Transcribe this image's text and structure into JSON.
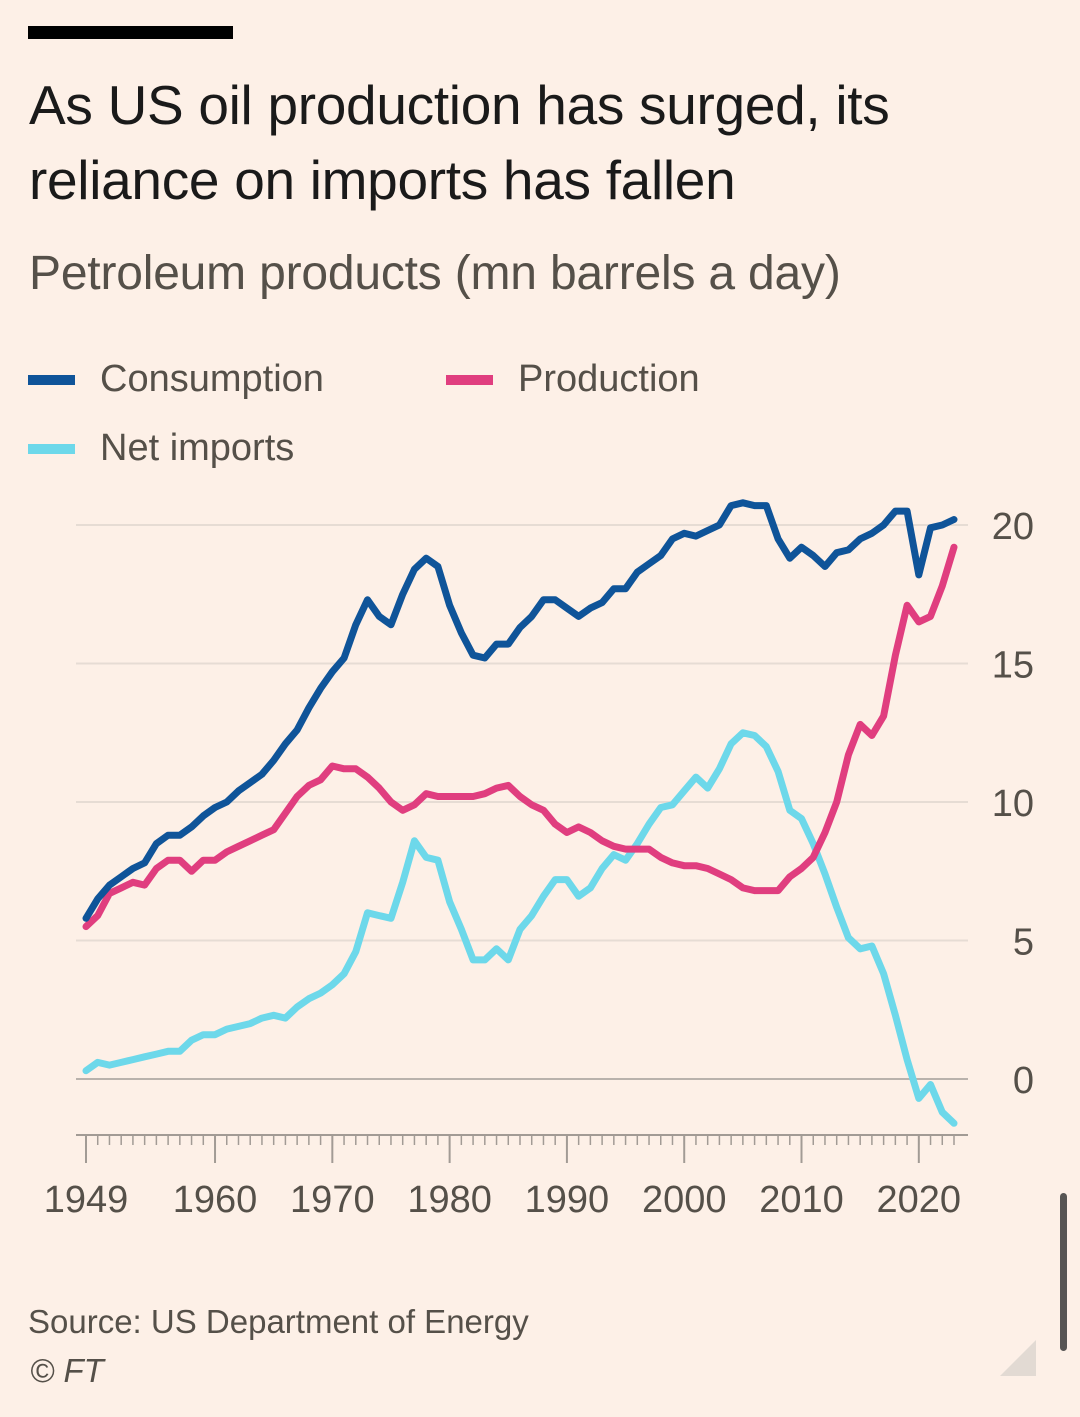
{
  "header": {
    "title": "As US oil production has surged, its reliance on imports has fallen",
    "subtitle": "Petroleum products (mn barrels a day)"
  },
  "legend": [
    {
      "label": "Consumption",
      "color": "#0f5499"
    },
    {
      "label": "Production",
      "color": "#e03e7f"
    },
    {
      "label": "Net imports",
      "color": "#6dd8ea"
    }
  ],
  "footer": {
    "source": "Source: US Department of Energy",
    "copyright": "© FT"
  },
  "chart_data": {
    "type": "line",
    "title": "As US oil production has surged, its reliance on imports has fallen",
    "ylabel": "Petroleum products (mn barrels a day)",
    "xlim": [
      1949,
      2023
    ],
    "ylim": [
      -2,
      21
    ],
    "yticks": [
      0,
      5,
      10,
      15,
      20
    ],
    "ytick_labels": [
      "0",
      "5",
      "10",
      "15",
      "20"
    ],
    "xticks": [
      1949,
      1960,
      1970,
      1980,
      1990,
      2000,
      2010,
      2020
    ],
    "xtick_labels": [
      "1949",
      "1960",
      "1970",
      "1980",
      "1990",
      "2000",
      "2010",
      "2020"
    ],
    "series": [
      {
        "name": "Consumption",
        "color": "#0f5499",
        "points": [
          [
            1949,
            5.8
          ],
          [
            1950,
            6.5
          ],
          [
            1951,
            7.0
          ],
          [
            1952,
            7.3
          ],
          [
            1953,
            7.6
          ],
          [
            1954,
            7.8
          ],
          [
            1955,
            8.5
          ],
          [
            1956,
            8.8
          ],
          [
            1957,
            8.8
          ],
          [
            1958,
            9.1
          ],
          [
            1959,
            9.5
          ],
          [
            1960,
            9.8
          ],
          [
            1961,
            10.0
          ],
          [
            1962,
            10.4
          ],
          [
            1963,
            10.7
          ],
          [
            1964,
            11.0
          ],
          [
            1965,
            11.5
          ],
          [
            1966,
            12.1
          ],
          [
            1967,
            12.6
          ],
          [
            1968,
            13.4
          ],
          [
            1969,
            14.1
          ],
          [
            1970,
            14.7
          ],
          [
            1971,
            15.2
          ],
          [
            1972,
            16.4
          ],
          [
            1973,
            17.3
          ],
          [
            1974,
            16.7
          ],
          [
            1975,
            16.4
          ],
          [
            1976,
            17.5
          ],
          [
            1977,
            18.4
          ],
          [
            1978,
            18.8
          ],
          [
            1979,
            18.5
          ],
          [
            1980,
            17.1
          ],
          [
            1981,
            16.1
          ],
          [
            1982,
            15.3
          ],
          [
            1983,
            15.2
          ],
          [
            1984,
            15.7
          ],
          [
            1985,
            15.7
          ],
          [
            1986,
            16.3
          ],
          [
            1987,
            16.7
          ],
          [
            1988,
            17.3
          ],
          [
            1989,
            17.3
          ],
          [
            1990,
            17.0
          ],
          [
            1991,
            16.7
          ],
          [
            1992,
            17.0
          ],
          [
            1993,
            17.2
          ],
          [
            1994,
            17.7
          ],
          [
            1995,
            17.7
          ],
          [
            1996,
            18.3
          ],
          [
            1997,
            18.6
          ],
          [
            1998,
            18.9
          ],
          [
            1999,
            19.5
          ],
          [
            2000,
            19.7
          ],
          [
            2001,
            19.6
          ],
          [
            2002,
            19.8
          ],
          [
            2003,
            20.0
          ],
          [
            2004,
            20.7
          ],
          [
            2005,
            20.8
          ],
          [
            2006,
            20.7
          ],
          [
            2007,
            20.7
          ],
          [
            2008,
            19.5
          ],
          [
            2009,
            18.8
          ],
          [
            2010,
            19.2
          ],
          [
            2011,
            18.9
          ],
          [
            2012,
            18.5
          ],
          [
            2013,
            19.0
          ],
          [
            2014,
            19.1
          ],
          [
            2015,
            19.5
          ],
          [
            2016,
            19.7
          ],
          [
            2017,
            20.0
          ],
          [
            2018,
            20.5
          ],
          [
            2019,
            20.5
          ],
          [
            2020,
            18.2
          ],
          [
            2021,
            19.9
          ],
          [
            2022,
            20.0
          ],
          [
            2023,
            20.2
          ]
        ]
      },
      {
        "name": "Production",
        "color": "#e03e7f",
        "points": [
          [
            1949,
            5.5
          ],
          [
            1950,
            5.9
          ],
          [
            1951,
            6.7
          ],
          [
            1952,
            6.9
          ],
          [
            1953,
            7.1
          ],
          [
            1954,
            7.0
          ],
          [
            1955,
            7.6
          ],
          [
            1956,
            7.9
          ],
          [
            1957,
            7.9
          ],
          [
            1958,
            7.5
          ],
          [
            1959,
            7.9
          ],
          [
            1960,
            7.9
          ],
          [
            1961,
            8.2
          ],
          [
            1962,
            8.4
          ],
          [
            1963,
            8.6
          ],
          [
            1964,
            8.8
          ],
          [
            1965,
            9.0
          ],
          [
            1966,
            9.6
          ],
          [
            1967,
            10.2
          ],
          [
            1968,
            10.6
          ],
          [
            1969,
            10.8
          ],
          [
            1970,
            11.3
          ],
          [
            1971,
            11.2
          ],
          [
            1972,
            11.2
          ],
          [
            1973,
            10.9
          ],
          [
            1974,
            10.5
          ],
          [
            1975,
            10.0
          ],
          [
            1976,
            9.7
          ],
          [
            1977,
            9.9
          ],
          [
            1978,
            10.3
          ],
          [
            1979,
            10.2
          ],
          [
            1980,
            10.2
          ],
          [
            1981,
            10.2
          ],
          [
            1982,
            10.2
          ],
          [
            1983,
            10.3
          ],
          [
            1984,
            10.5
          ],
          [
            1985,
            10.6
          ],
          [
            1986,
            10.2
          ],
          [
            1987,
            9.9
          ],
          [
            1988,
            9.7
          ],
          [
            1989,
            9.2
          ],
          [
            1990,
            8.9
          ],
          [
            1991,
            9.1
          ],
          [
            1992,
            8.9
          ],
          [
            1993,
            8.6
          ],
          [
            1994,
            8.4
          ],
          [
            1995,
            8.3
          ],
          [
            1996,
            8.3
          ],
          [
            1997,
            8.3
          ],
          [
            1998,
            8.0
          ],
          [
            1999,
            7.8
          ],
          [
            2000,
            7.7
          ],
          [
            2001,
            7.7
          ],
          [
            2002,
            7.6
          ],
          [
            2003,
            7.4
          ],
          [
            2004,
            7.2
          ],
          [
            2005,
            6.9
          ],
          [
            2006,
            6.8
          ],
          [
            2007,
            6.8
          ],
          [
            2008,
            6.8
          ],
          [
            2009,
            7.3
          ],
          [
            2010,
            7.6
          ],
          [
            2011,
            8.0
          ],
          [
            2012,
            8.9
          ],
          [
            2013,
            10.0
          ],
          [
            2014,
            11.7
          ],
          [
            2015,
            12.8
          ],
          [
            2016,
            12.4
          ],
          [
            2017,
            13.1
          ],
          [
            2018,
            15.3
          ],
          [
            2019,
            17.1
          ],
          [
            2020,
            16.5
          ],
          [
            2021,
            16.7
          ],
          [
            2022,
            17.8
          ],
          [
            2023,
            19.2
          ]
        ]
      },
      {
        "name": "Net imports",
        "color": "#6dd8ea",
        "points": [
          [
            1949,
            0.3
          ],
          [
            1950,
            0.6
          ],
          [
            1951,
            0.5
          ],
          [
            1952,
            0.6
          ],
          [
            1953,
            0.7
          ],
          [
            1954,
            0.8
          ],
          [
            1955,
            0.9
          ],
          [
            1956,
            1.0
          ],
          [
            1957,
            1.0
          ],
          [
            1958,
            1.4
          ],
          [
            1959,
            1.6
          ],
          [
            1960,
            1.6
          ],
          [
            1961,
            1.8
          ],
          [
            1962,
            1.9
          ],
          [
            1963,
            2.0
          ],
          [
            1964,
            2.2
          ],
          [
            1965,
            2.3
          ],
          [
            1966,
            2.2
          ],
          [
            1967,
            2.6
          ],
          [
            1968,
            2.9
          ],
          [
            1969,
            3.1
          ],
          [
            1970,
            3.4
          ],
          [
            1971,
            3.8
          ],
          [
            1972,
            4.6
          ],
          [
            1973,
            6.0
          ],
          [
            1974,
            5.9
          ],
          [
            1975,
            5.8
          ],
          [
            1976,
            7.1
          ],
          [
            1977,
            8.6
          ],
          [
            1978,
            8.0
          ],
          [
            1979,
            7.9
          ],
          [
            1980,
            6.4
          ],
          [
            1981,
            5.4
          ],
          [
            1982,
            4.3
          ],
          [
            1983,
            4.3
          ],
          [
            1984,
            4.7
          ],
          [
            1985,
            4.3
          ],
          [
            1986,
            5.4
          ],
          [
            1987,
            5.9
          ],
          [
            1988,
            6.6
          ],
          [
            1989,
            7.2
          ],
          [
            1990,
            7.2
          ],
          [
            1991,
            6.6
          ],
          [
            1992,
            6.9
          ],
          [
            1993,
            7.6
          ],
          [
            1994,
            8.1
          ],
          [
            1995,
            7.9
          ],
          [
            1996,
            8.5
          ],
          [
            1997,
            9.2
          ],
          [
            1998,
            9.8
          ],
          [
            1999,
            9.9
          ],
          [
            2000,
            10.4
          ],
          [
            2001,
            10.9
          ],
          [
            2002,
            10.5
          ],
          [
            2003,
            11.2
          ],
          [
            2004,
            12.1
          ],
          [
            2005,
            12.5
          ],
          [
            2006,
            12.4
          ],
          [
            2007,
            12.0
          ],
          [
            2008,
            11.1
          ],
          [
            2009,
            9.7
          ],
          [
            2010,
            9.4
          ],
          [
            2011,
            8.5
          ],
          [
            2012,
            7.4
          ],
          [
            2013,
            6.2
          ],
          [
            2014,
            5.1
          ],
          [
            2015,
            4.7
          ],
          [
            2016,
            4.8
          ],
          [
            2017,
            3.8
          ],
          [
            2018,
            2.3
          ],
          [
            2019,
            0.7
          ],
          [
            2020,
            -0.7
          ],
          [
            2021,
            -0.2
          ],
          [
            2022,
            -1.2
          ],
          [
            2023,
            -1.6
          ]
        ]
      }
    ],
    "legend": [
      "Consumption",
      "Production",
      "Net imports"
    ],
    "legend_position": "top",
    "grid": true
  }
}
